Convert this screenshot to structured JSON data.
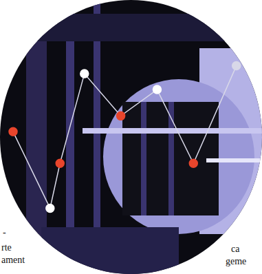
{
  "chart_data": {
    "type": "line",
    "x": [
      12,
      68,
      83,
      120,
      175,
      230,
      285,
      350
    ],
    "values": [
      52,
      23,
      40,
      74,
      58,
      68,
      40,
      77
    ],
    "colors": [
      "#e8452c",
      "#ffffff",
      "#e8452c",
      "#ffffff",
      "#e8452c",
      "#ffffff",
      "#e8452c",
      "#d8d8e8"
    ],
    "color": "#d8d8e8",
    "xlim": [
      0,
      381
    ],
    "ylim": [
      0,
      100
    ],
    "grid": false,
    "tick_labels": false,
    "marker": "circle",
    "annotations": [
      "-",
      "rte",
      "ament",
      "ca",
      "geme"
    ]
  }
}
